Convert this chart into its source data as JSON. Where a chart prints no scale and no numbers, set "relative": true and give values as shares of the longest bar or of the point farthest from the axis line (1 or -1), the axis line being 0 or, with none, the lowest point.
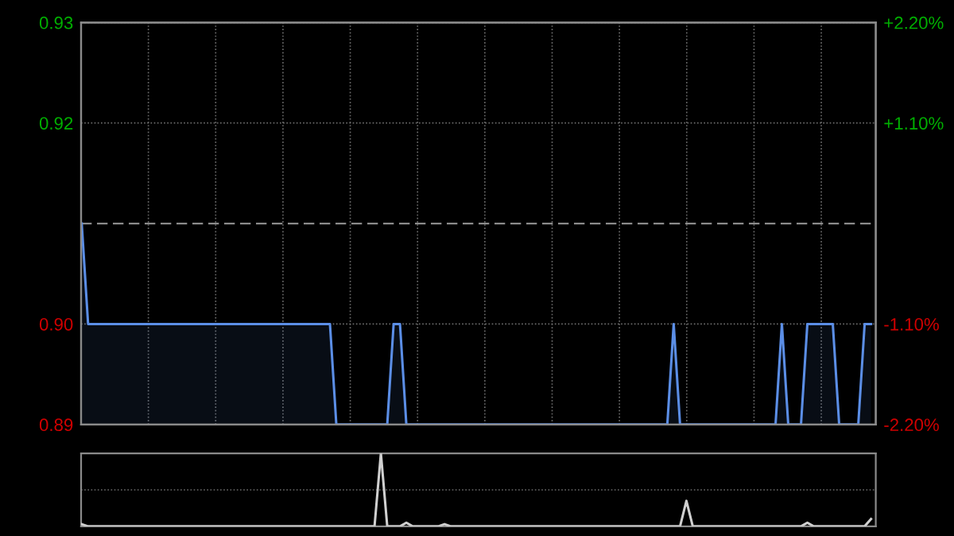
{
  "chart_data": [
    {
      "type": "area",
      "categories": [
        null,
        null,
        null,
        null,
        null,
        null,
        null,
        null,
        null,
        null,
        null,
        null,
        null,
        null,
        null,
        null,
        null,
        null,
        null,
        null,
        null,
        null,
        null,
        null,
        null,
        null,
        null,
        null,
        null,
        null,
        null,
        null,
        null,
        null,
        null,
        null,
        null,
        null,
        null,
        null,
        null,
        null,
        null,
        null,
        null,
        null,
        null,
        null,
        null,
        null,
        null,
        null,
        null,
        null,
        null,
        null,
        null,
        null,
        null,
        null,
        null,
        null,
        null,
        null,
        null,
        null,
        null,
        null,
        null,
        null,
        null,
        null,
        null,
        null,
        null,
        null,
        null,
        null,
        null,
        null,
        null,
        null,
        null,
        null,
        null,
        null,
        null,
        null,
        null,
        null,
        null,
        null,
        null,
        null,
        null,
        null,
        null,
        null,
        null,
        null,
        null,
        null,
        null,
        null,
        null,
        null,
        null,
        null,
        null,
        null,
        null,
        null,
        null,
        null,
        null,
        null,
        null,
        null,
        null,
        null,
        null,
        null,
        null,
        null,
        null
      ],
      "series": [
        {
          "color": "#5b8ee6",
          "values": [
            0.91,
            0.9,
            0.9,
            0.9,
            0.9,
            0.9,
            0.9,
            0.9,
            0.9,
            0.9,
            0.9,
            0.9,
            0.9,
            0.9,
            0.9,
            0.9,
            0.9,
            0.9,
            0.9,
            0.9,
            0.9,
            0.9,
            0.9,
            0.9,
            0.9,
            0.9,
            0.9,
            0.9,
            0.9,
            0.9,
            0.9,
            0.9,
            0.9,
            0.9,
            0.9,
            0.9,
            0.9,
            0.9,
            0.9,
            0.9,
            0.89,
            0.89,
            0.89,
            0.89,
            0.89,
            0.89,
            0.89,
            0.89,
            0.89,
            0.9,
            0.9,
            0.89,
            0.89,
            0.89,
            0.89,
            0.89,
            0.89,
            0.89,
            0.89,
            0.89,
            0.89,
            0.89,
            0.89,
            0.89,
            0.89,
            0.89,
            0.89,
            0.89,
            0.89,
            0.89,
            0.89,
            0.89,
            0.89,
            0.89,
            0.89,
            0.89,
            0.89,
            0.89,
            0.89,
            0.89,
            0.89,
            0.89,
            0.89,
            0.89,
            0.89,
            0.89,
            0.89,
            0.89,
            0.89,
            0.89,
            0.89,
            0.89,
            0.89,
            0.9,
            0.89,
            0.89,
            0.89,
            0.89,
            0.89,
            0.89,
            0.89,
            0.89,
            0.89,
            0.89,
            0.89,
            0.89,
            0.89,
            0.89,
            0.89,
            0.89,
            0.9,
            0.89,
            0.89,
            0.89,
            0.9,
            0.9,
            0.9,
            0.9,
            0.9,
            0.89,
            0.89,
            0.89,
            0.89,
            0.9,
            0.9
          ]
        }
      ],
      "ylim": [
        0.89,
        0.93
      ],
      "yticks": [
        0.89,
        {
          "value": 0.9,
          "label": "0.90"
        },
        0.92,
        0.93
      ],
      "y2lim": [
        -2.2,
        2.2
      ],
      "y2ticks": [
        {
          "value": -2.2,
          "label": "-2.20%"
        },
        {
          "value": -1.1,
          "label": "-1.10%"
        },
        {
          "value": 1.1,
          "label": "+1.10%"
        },
        {
          "value": 2.2,
          "label": "+2.20%"
        }
      ],
      "ref_lines": [
        {
          "axis": "y",
          "value": 0.91,
          "color": "#8a8a8a",
          "line_style": "dashed"
        }
      ],
      "grid": true,
      "tick_labels": "y"
    },
    {
      "type": "line",
      "relative": true,
      "tick_labels": false,
      "ref_lines": [
        {
          "axis": "y",
          "value": 0.5,
          "color": "#6a6a6a",
          "line_style": "dotted"
        }
      ],
      "categories": [
        null,
        null,
        null,
        null,
        null,
        null,
        null,
        null,
        null,
        null,
        null,
        null,
        null,
        null,
        null,
        null,
        null,
        null,
        null,
        null,
        null,
        null,
        null,
        null,
        null,
        null,
        null,
        null,
        null,
        null,
        null,
        null,
        null,
        null,
        null,
        null,
        null,
        null,
        null,
        null,
        null,
        null,
        null,
        null,
        null,
        null,
        null,
        null,
        null,
        null,
        null,
        null,
        null,
        null,
        null,
        null,
        null,
        null,
        null,
        null,
        null,
        null,
        null,
        null,
        null,
        null,
        null,
        null,
        null,
        null,
        null,
        null,
        null,
        null,
        null,
        null,
        null,
        null,
        null,
        null,
        null,
        null,
        null,
        null,
        null,
        null,
        null,
        null,
        null,
        null,
        null,
        null,
        null,
        null,
        null,
        null,
        null,
        null,
        null,
        null,
        null,
        null,
        null,
        null,
        null,
        null,
        null,
        null,
        null,
        null,
        null,
        null,
        null,
        null,
        null,
        null,
        null,
        null,
        null,
        null,
        null,
        null,
        null,
        null,
        null
      ],
      "series": [
        {
          "color": "#d0d0d0",
          "values": [
            0.03,
            0,
            0,
            0,
            0,
            0,
            0,
            0,
            0,
            0,
            0,
            0,
            0,
            0,
            0,
            0,
            0,
            0,
            0,
            0,
            0,
            0,
            0,
            0,
            0,
            0,
            0,
            0,
            0,
            0,
            0,
            0,
            0,
            0,
            0,
            0,
            0,
            0,
            0,
            0,
            0,
            0,
            0,
            0,
            0,
            0,
            0,
            1,
            0,
            0,
            0,
            0.05,
            0,
            0,
            0,
            0,
            0,
            0.03,
            0,
            0,
            0,
            0,
            0,
            0,
            0,
            0,
            0,
            0,
            0,
            0,
            0,
            0,
            0,
            0,
            0,
            0,
            0,
            0,
            0,
            0,
            0,
            0,
            0,
            0,
            0,
            0,
            0,
            0,
            0,
            0,
            0,
            0,
            0,
            0,
            0,
            0.35,
            0,
            0,
            0,
            0,
            0,
            0,
            0,
            0,
            0,
            0,
            0,
            0,
            0,
            0,
            0,
            0,
            0,
            0,
            0.05,
            0,
            0,
            0,
            0,
            0,
            0,
            0,
            0,
            0,
            0.1
          ]
        }
      ]
    }
  ]
}
